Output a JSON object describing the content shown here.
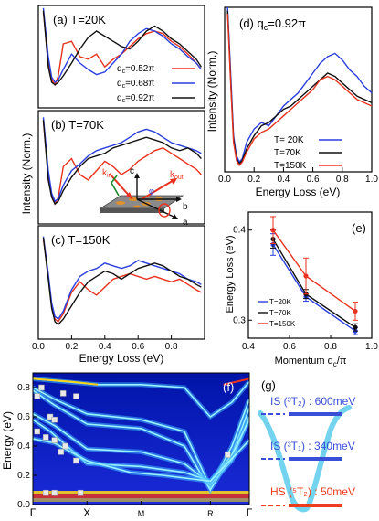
{
  "chart_data": [
    {
      "type": "line",
      "panel": "a",
      "label": "(a) T=20K",
      "xlabel": "",
      "xlim": [
        0,
        1.0
      ],
      "legend": [
        "q_c=0.52π",
        "q_c=0.68π",
        "q_c=0.92π"
      ],
      "legend_placement": "right",
      "series": [
        {
          "name": "q_c=0.52π",
          "color": "#e8321e",
          "x": [
            0.03,
            0.06,
            0.08,
            0.1,
            0.12,
            0.15,
            0.2,
            0.25,
            0.3,
            0.35,
            0.4,
            0.45,
            0.5,
            0.55,
            0.6,
            0.65,
            0.7,
            0.75,
            0.8,
            0.85,
            0.9,
            0.95,
            0.98
          ],
          "y": [
            0.95,
            0.55,
            0.42,
            0.38,
            0.45,
            0.7,
            0.72,
            0.6,
            0.58,
            0.62,
            0.52,
            0.58,
            0.62,
            0.68,
            0.74,
            0.78,
            0.8,
            0.78,
            0.72,
            0.68,
            0.62,
            0.55,
            0.5
          ]
        },
        {
          "name": "q_c=0.68π",
          "color": "#2a3fe0",
          "x": [
            0.03,
            0.06,
            0.08,
            0.1,
            0.12,
            0.15,
            0.2,
            0.25,
            0.3,
            0.35,
            0.4,
            0.45,
            0.5,
            0.55,
            0.6,
            0.65,
            0.7,
            0.75,
            0.8,
            0.85,
            0.9,
            0.95,
            0.98
          ],
          "y": [
            0.98,
            0.6,
            0.44,
            0.4,
            0.42,
            0.5,
            0.62,
            0.55,
            0.5,
            0.46,
            0.48,
            0.55,
            0.62,
            0.72,
            0.78,
            0.82,
            0.8,
            0.76,
            0.7,
            0.66,
            0.6,
            0.55,
            0.5
          ]
        },
        {
          "name": "q_c=0.92π",
          "color": "#111111",
          "x": [
            0.03,
            0.06,
            0.08,
            0.1,
            0.12,
            0.15,
            0.2,
            0.25,
            0.3,
            0.35,
            0.4,
            0.45,
            0.5,
            0.55,
            0.6,
            0.65,
            0.7,
            0.75,
            0.8,
            0.85,
            0.9,
            0.95,
            0.98
          ],
          "y": [
            0.96,
            0.52,
            0.4,
            0.38,
            0.4,
            0.45,
            0.55,
            0.66,
            0.75,
            0.8,
            0.76,
            0.72,
            0.68,
            0.66,
            0.72,
            0.8,
            0.84,
            0.8,
            0.74,
            0.7,
            0.64,
            0.58,
            0.52
          ]
        }
      ]
    },
    {
      "type": "line",
      "panel": "b",
      "label": "(b) T=70K",
      "xlabel": "",
      "xlim": [
        0,
        1.0
      ],
      "series": [
        {
          "name": "",
          "color": "#e8321e",
          "x": [
            0.03,
            0.06,
            0.08,
            0.1,
            0.12,
            0.15,
            0.2,
            0.25,
            0.3,
            0.35,
            0.4,
            0.45,
            0.5,
            0.55,
            0.6,
            0.65,
            0.7,
            0.75,
            0.8,
            0.85,
            0.9,
            0.95,
            0.98
          ],
          "y": [
            0.92,
            0.5,
            0.36,
            0.3,
            0.35,
            0.58,
            0.64,
            0.52,
            0.48,
            0.55,
            0.62,
            0.58,
            0.52,
            0.56,
            0.62,
            0.66,
            0.7,
            0.72,
            0.68,
            0.64,
            0.6,
            0.56,
            0.52
          ]
        },
        {
          "name": "",
          "color": "#2a3fe0",
          "x": [
            0.03,
            0.06,
            0.08,
            0.1,
            0.12,
            0.15,
            0.2,
            0.25,
            0.3,
            0.35,
            0.4,
            0.45,
            0.5,
            0.55,
            0.6,
            0.65,
            0.7,
            0.75,
            0.8,
            0.85,
            0.9,
            0.95,
            0.98
          ],
          "y": [
            0.95,
            0.55,
            0.38,
            0.32,
            0.34,
            0.44,
            0.55,
            0.6,
            0.66,
            0.7,
            0.72,
            0.74,
            0.76,
            0.8,
            0.84,
            0.86,
            0.84,
            0.8,
            0.76,
            0.74,
            0.72,
            0.7,
            0.68
          ]
        },
        {
          "name": "",
          "color": "#111111",
          "x": [
            0.03,
            0.06,
            0.08,
            0.1,
            0.12,
            0.15,
            0.2,
            0.25,
            0.3,
            0.35,
            0.4,
            0.45,
            0.5,
            0.55,
            0.6,
            0.65,
            0.7,
            0.75,
            0.8,
            0.85,
            0.9,
            0.95,
            0.98
          ],
          "y": [
            0.93,
            0.48,
            0.35,
            0.3,
            0.32,
            0.4,
            0.5,
            0.58,
            0.64,
            0.66,
            0.68,
            0.72,
            0.74,
            0.76,
            0.78,
            0.8,
            0.78,
            0.76,
            0.72,
            0.7,
            0.72,
            0.68,
            0.64
          ]
        }
      ]
    },
    {
      "type": "line",
      "panel": "c",
      "label": "(c) T=150K",
      "xlabel": "Energy Loss (eV)",
      "ylabel": "Intensity (Norm.)",
      "xlim": [
        0,
        1.0
      ],
      "xticks": [
        "0.0",
        "0.2",
        "0.4",
        "0.6",
        "0.8"
      ],
      "series": [
        {
          "name": "",
          "color": "#e8321e",
          "x": [
            0.03,
            0.06,
            0.08,
            0.1,
            0.12,
            0.15,
            0.2,
            0.25,
            0.3,
            0.35,
            0.4,
            0.45,
            0.5,
            0.55,
            0.6,
            0.65,
            0.7,
            0.75,
            0.8,
            0.85,
            0.9,
            0.95,
            0.98
          ],
          "y": [
            0.9,
            0.62,
            0.4,
            0.3,
            0.28,
            0.34,
            0.5,
            0.58,
            0.52,
            0.48,
            0.54,
            0.6,
            0.62,
            0.64,
            0.62,
            0.6,
            0.62,
            0.6,
            0.58,
            0.6,
            0.56,
            0.52,
            0.5
          ]
        },
        {
          "name": "",
          "color": "#2a3fe0",
          "x": [
            0.03,
            0.06,
            0.08,
            0.1,
            0.12,
            0.15,
            0.2,
            0.25,
            0.3,
            0.35,
            0.4,
            0.45,
            0.5,
            0.55,
            0.6,
            0.65,
            0.7,
            0.75,
            0.8,
            0.85,
            0.9,
            0.95,
            0.98
          ],
          "y": [
            0.92,
            0.64,
            0.42,
            0.32,
            0.3,
            0.36,
            0.52,
            0.62,
            0.66,
            0.68,
            0.72,
            0.7,
            0.68,
            0.7,
            0.74,
            0.72,
            0.7,
            0.68,
            0.66,
            0.64,
            0.6,
            0.58,
            0.56
          ]
        },
        {
          "name": "",
          "color": "#111111",
          "x": [
            0.03,
            0.06,
            0.08,
            0.1,
            0.12,
            0.15,
            0.2,
            0.25,
            0.3,
            0.35,
            0.4,
            0.45,
            0.5,
            0.55,
            0.6,
            0.65,
            0.7,
            0.75,
            0.8,
            0.85,
            0.9,
            0.95,
            0.98
          ],
          "y": [
            0.91,
            0.6,
            0.38,
            0.28,
            0.26,
            0.3,
            0.4,
            0.5,
            0.58,
            0.62,
            0.66,
            0.64,
            0.6,
            0.64,
            0.68,
            0.7,
            0.72,
            0.7,
            0.66,
            0.62,
            0.6,
            0.56,
            0.54
          ]
        }
      ]
    },
    {
      "type": "line",
      "panel": "d",
      "label": "(d) q_c=0.92π",
      "xlabel": "Energy Loss (eV)",
      "ylabel": "Intensity (Norm.)",
      "xlim": [
        0,
        1.0
      ],
      "xticks": [
        "0.0",
        "0.2",
        "0.4",
        "0.6",
        "0.8",
        "1.0"
      ],
      "legend": [
        "T= 20K",
        "T=70K",
        "T=150K"
      ],
      "legend_placement": "bottom-right",
      "series": [
        {
          "name": "T= 20K",
          "color": "#2a3fe0",
          "x": [
            0.02,
            0.04,
            0.06,
            0.08,
            0.1,
            0.12,
            0.15,
            0.2,
            0.25,
            0.3,
            0.35,
            0.4,
            0.45,
            0.5,
            0.55,
            0.6,
            0.65,
            0.7,
            0.75,
            0.8,
            0.85,
            0.9,
            0.95,
            1.0
          ],
          "y": [
            1.0,
            0.62,
            0.22,
            0.1,
            0.06,
            0.08,
            0.18,
            0.26,
            0.3,
            0.28,
            0.34,
            0.4,
            0.44,
            0.48,
            0.54,
            0.6,
            0.66,
            0.7,
            0.72,
            0.68,
            0.62,
            0.58,
            0.52,
            0.48
          ]
        },
        {
          "name": "T=70K",
          "color": "#111111",
          "x": [
            0.02,
            0.04,
            0.06,
            0.08,
            0.1,
            0.12,
            0.15,
            0.2,
            0.25,
            0.3,
            0.35,
            0.4,
            0.45,
            0.5,
            0.55,
            0.6,
            0.65,
            0.7,
            0.75,
            0.8,
            0.85,
            0.9,
            0.95,
            1.0
          ],
          "y": [
            0.98,
            0.58,
            0.2,
            0.08,
            0.05,
            0.07,
            0.14,
            0.22,
            0.28,
            0.3,
            0.34,
            0.38,
            0.4,
            0.44,
            0.48,
            0.52,
            0.56,
            0.6,
            0.58,
            0.54,
            0.5,
            0.46,
            0.44,
            0.42
          ]
        },
        {
          "name": "T=150K",
          "color": "#e8321e",
          "x": [
            0.02,
            0.04,
            0.06,
            0.08,
            0.1,
            0.12,
            0.15,
            0.2,
            0.25,
            0.3,
            0.35,
            0.4,
            0.45,
            0.5,
            0.55,
            0.6,
            0.65,
            0.7,
            0.75,
            0.8,
            0.85,
            0.9,
            0.95,
            1.0
          ],
          "y": [
            0.96,
            0.56,
            0.18,
            0.07,
            0.04,
            0.06,
            0.12,
            0.2,
            0.24,
            0.26,
            0.3,
            0.34,
            0.38,
            0.42,
            0.46,
            0.5,
            0.56,
            0.58,
            0.56,
            0.52,
            0.48,
            0.44,
            0.42,
            0.4
          ]
        }
      ]
    },
    {
      "type": "scatter",
      "panel": "e",
      "label": "(e)",
      "xlabel": "Momentum q_c/π",
      "ylabel": "Energy Loss (eV)",
      "xlim": [
        0.4,
        1.0
      ],
      "ylim": [
        0.28,
        0.42
      ],
      "xticks": [
        "0.4",
        "0.6",
        "0.8",
        "1.0"
      ],
      "yticks": [
        "0.3",
        "0.4"
      ],
      "legend": [
        "T=20K",
        "T=70K",
        "T=150K"
      ],
      "legend_placement": "left",
      "series": [
        {
          "name": "T=20K",
          "color": "#2a3fe0",
          "x": [
            0.52,
            0.68,
            0.92
          ],
          "y": [
            0.384,
            0.326,
            0.288
          ],
          "err": [
            0.012,
            0.005,
            0.004
          ]
        },
        {
          "name": "T=70K",
          "color": "#111111",
          "x": [
            0.52,
            0.68,
            0.92
          ],
          "y": [
            0.39,
            0.329,
            0.292
          ],
          "err": [
            0.01,
            0.005,
            0.004
          ]
        },
        {
          "name": "T=150K",
          "color": "#e8321e",
          "x": [
            0.52,
            0.68,
            0.92
          ],
          "y": [
            0.4,
            0.349,
            0.31
          ],
          "err": [
            0.015,
            0.02,
            0.01
          ]
        }
      ]
    },
    {
      "type": "heatmap",
      "panel": "f",
      "label": "(f)",
      "ylabel": "Energy (eV)",
      "ylim": [
        0,
        0.9
      ],
      "yticks": [
        "0.0",
        "0.2",
        "0.4",
        "0.6",
        "0.8"
      ],
      "xticks": [
        "Γ",
        "X",
        "M",
        "R",
        "Γ"
      ]
    }
  ],
  "inset": {
    "k_in": "k",
    "k_in_sub": "in",
    "k_out": "k",
    "k_out_sub": "out",
    "axis_c": "c",
    "axis_b": "b",
    "axis_a": "a",
    "phi": "φ"
  },
  "levels": {
    "panel_label": "(g)",
    "is_600": "IS (³T₂) : 600meV",
    "is_340": "IS (³T₁) : 340meV",
    "hs_50": "HS (⁵T₂) : 50meV"
  },
  "colors": {
    "red": "#e8321e",
    "blue": "#2a3fe0",
    "black": "#111111",
    "level_blue": "#3a4fd8",
    "level_red": "#ef3b1e",
    "parabola": "#74d4ef"
  }
}
